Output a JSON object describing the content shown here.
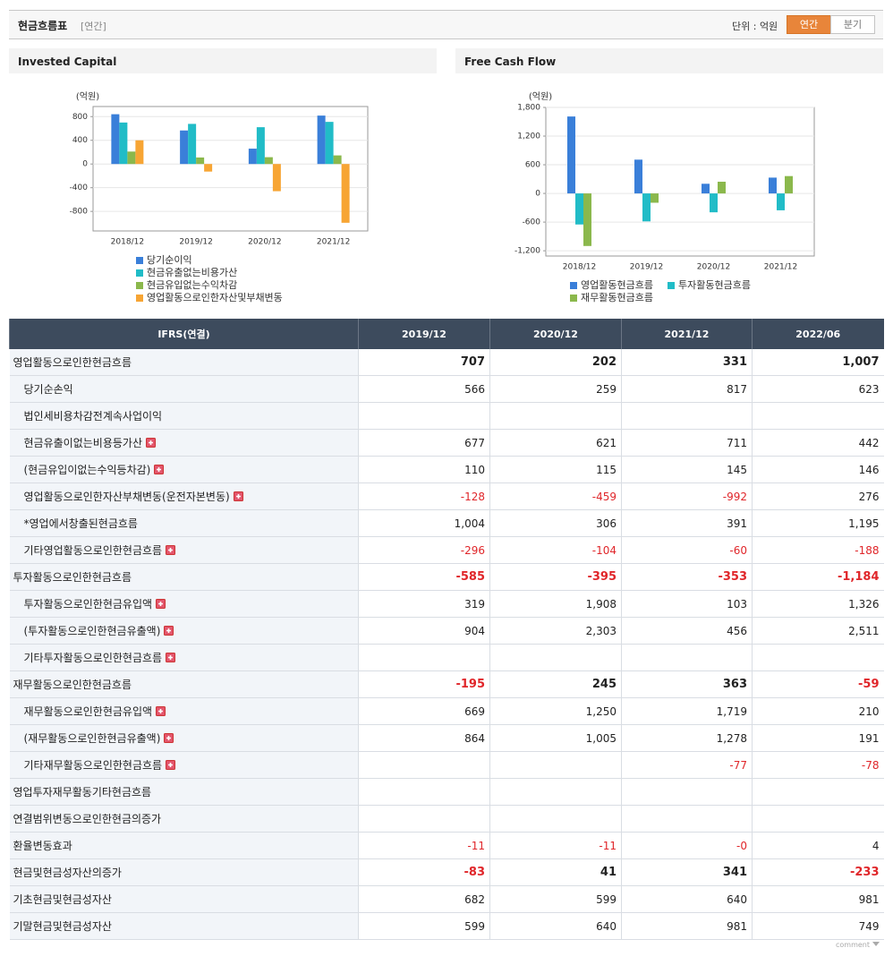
{
  "header": {
    "title": "현금흐름표",
    "period": "[연간]",
    "unit": "단위 : 억원",
    "tabs": [
      "연간",
      "분기"
    ],
    "active_tab": 0
  },
  "chart_data": [
    {
      "type": "bar",
      "title": "Invested Capital",
      "unit": "(억원)",
      "categories": [
        "2018/12",
        "2019/12",
        "2020/12",
        "2021/12"
      ],
      "series": [
        {
          "name": "당기순이익",
          "color": "#3a7fd9",
          "values": [
            840,
            566,
            259,
            817
          ]
        },
        {
          "name": "현금유출없는비용가산",
          "color": "#21bcc7",
          "values": [
            700,
            677,
            621,
            711
          ]
        },
        {
          "name": "현금유입없는수익차감",
          "color": "#8bb84c",
          "values": [
            210,
            110,
            115,
            145
          ]
        },
        {
          "name": "영업활동으로인한자산및부채변동",
          "color": "#f7a534",
          "values": [
            400,
            -128,
            -459,
            -992
          ]
        }
      ],
      "ylim": [
        -1130,
        970
      ],
      "yticks": [
        -800,
        -400,
        0,
        400,
        800
      ],
      "grid": true,
      "legend": "bottom"
    },
    {
      "type": "bar",
      "title": "Free Cash Flow",
      "unit": "(억원)",
      "categories": [
        "2018/12",
        "2019/12",
        "2020/12",
        "2021/12"
      ],
      "series": [
        {
          "name": "영업활동현금흐름",
          "color": "#3a7fd9",
          "values": [
            1610,
            707,
            202,
            331
          ]
        },
        {
          "name": "투자활동현금흐름",
          "color": "#21bcc7",
          "values": [
            -650,
            -585,
            -395,
            -353
          ]
        },
        {
          "name": "재무활동현금흐름",
          "color": "#8bb84c",
          "values": [
            -1100,
            -195,
            245,
            363
          ]
        }
      ],
      "ylim": [
        -1310,
        1800
      ],
      "yticks": [
        {
          "value": -1200,
          "label": "-1,200"
        },
        -600,
        0,
        600,
        {
          "value": 1200,
          "label": "1,200"
        },
        {
          "value": 1800,
          "label": "1,800"
        }
      ],
      "grid": true,
      "legend": "bottom"
    }
  ],
  "table": {
    "columns": [
      "IFRS(연결)",
      "2019/12",
      "2020/12",
      "2021/12",
      "2022/06"
    ],
    "rows": [
      {
        "label": "영업활동으로인한현금흐름",
        "values": [
          "707",
          "202",
          "331",
          "1,007"
        ],
        "bold": true,
        "indent": false,
        "expand": false
      },
      {
        "label": "당기순손익",
        "values": [
          "566",
          "259",
          "817",
          "623"
        ],
        "bold": false,
        "indent": true,
        "expand": false
      },
      {
        "label": "법인세비용차감전계속사업이익",
        "values": [
          null,
          null,
          null,
          null
        ],
        "bold": false,
        "indent": true,
        "expand": false
      },
      {
        "label": "현금유출이없는비용등가산",
        "values": [
          "677",
          "621",
          "711",
          "442"
        ],
        "bold": false,
        "indent": true,
        "expand": true
      },
      {
        "label": "(현금유입이없는수익등차감)",
        "values": [
          "110",
          "115",
          "145",
          "146"
        ],
        "bold": false,
        "indent": true,
        "expand": true
      },
      {
        "label": "영업활동으로인한자산부채변동(운전자본변동)",
        "values": [
          "-128",
          "-459",
          "-992",
          "276"
        ],
        "bold": false,
        "indent": true,
        "expand": true
      },
      {
        "label": "*영업에서창출된현금흐름",
        "values": [
          "1,004",
          "306",
          "391",
          "1,195"
        ],
        "bold": false,
        "indent": true,
        "expand": false
      },
      {
        "label": "기타영업활동으로인한현금흐름",
        "values": [
          "-296",
          "-104",
          "-60",
          "-188"
        ],
        "bold": false,
        "indent": true,
        "expand": true
      },
      {
        "label": "투자활동으로인한현금흐름",
        "values": [
          "-585",
          "-395",
          "-353",
          "-1,184"
        ],
        "bold": true,
        "indent": false,
        "expand": false
      },
      {
        "label": "투자활동으로인한현금유입액",
        "values": [
          "319",
          "1,908",
          "103",
          "1,326"
        ],
        "bold": false,
        "indent": true,
        "expand": true
      },
      {
        "label": "(투자활동으로인한현금유출액)",
        "values": [
          "904",
          "2,303",
          "456",
          "2,511"
        ],
        "bold": false,
        "indent": true,
        "expand": true
      },
      {
        "label": "기타투자활동으로인한현금흐름",
        "values": [
          null,
          null,
          null,
          null
        ],
        "bold": false,
        "indent": true,
        "expand": true
      },
      {
        "label": "재무활동으로인한현금흐름",
        "values": [
          "-195",
          "245",
          "363",
          "-59"
        ],
        "bold": true,
        "indent": false,
        "expand": false
      },
      {
        "label": "재무활동으로인한현금유입액",
        "values": [
          "669",
          "1,250",
          "1,719",
          "210"
        ],
        "bold": false,
        "indent": true,
        "expand": true
      },
      {
        "label": "(재무활동으로인한현금유출액)",
        "values": [
          "864",
          "1,005",
          "1,278",
          "191"
        ],
        "bold": false,
        "indent": true,
        "expand": true
      },
      {
        "label": "기타재무활동으로인한현금흐름",
        "values": [
          null,
          null,
          "-77",
          "-78"
        ],
        "bold": false,
        "indent": true,
        "expand": true
      },
      {
        "label": "영업투자재무활동기타현금흐름",
        "values": [
          null,
          null,
          null,
          null
        ],
        "bold": false,
        "indent": false,
        "expand": false
      },
      {
        "label": "연결범위변동으로인한현금의증가",
        "values": [
          null,
          null,
          null,
          null
        ],
        "bold": false,
        "indent": false,
        "expand": false
      },
      {
        "label": "환율변동효과",
        "values": [
          "-11",
          "-11",
          "-0",
          "4"
        ],
        "bold": false,
        "indent": false,
        "expand": false
      },
      {
        "label": "현금및현금성자산의증가",
        "values": [
          "-83",
          "41",
          "341",
          "-233"
        ],
        "bold": true,
        "indent": false,
        "expand": false
      },
      {
        "label": "기초현금및현금성자산",
        "values": [
          "682",
          "599",
          "640",
          "981"
        ],
        "bold": false,
        "indent": false,
        "expand": false
      },
      {
        "label": "기말현금및현금성자산",
        "values": [
          "599",
          "640",
          "981",
          "749"
        ],
        "bold": false,
        "indent": false,
        "expand": false
      }
    ]
  },
  "footer": "comment"
}
